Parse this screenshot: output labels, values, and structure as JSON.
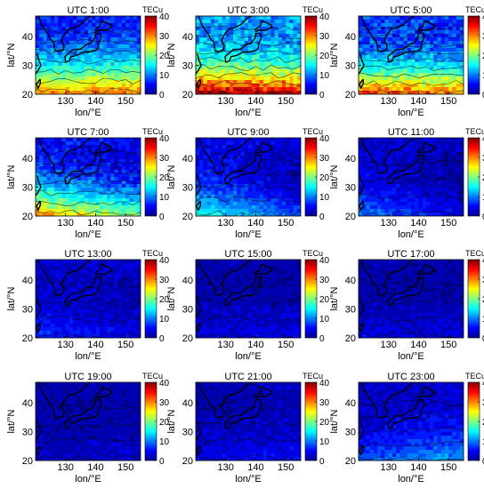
{
  "figure": {
    "xlabel": "lon/°E",
    "ylabel": "lat/°N",
    "colorbar_label": "TECu"
  },
  "chart_data": {
    "type": "heatmap",
    "x_ticks": [
      130,
      140,
      150
    ],
    "y_ticks": [
      20,
      30,
      40
    ],
    "xlim": [
      120,
      155
    ],
    "ylim": [
      20,
      47
    ],
    "colorbar": {
      "label": "TECu",
      "range": [
        0,
        40
      ],
      "ticks": [
        0,
        10,
        20,
        30,
        40
      ],
      "colormap": "jet"
    },
    "panels": [
      {
        "title": "UTC 1:00",
        "south_tec": 24,
        "north_tec": 6,
        "west_boost": 6,
        "east_boost": 8
      },
      {
        "title": "UTC 3:00",
        "south_tec": 38,
        "north_tec": 12,
        "west_boost": 2,
        "east_boost": 0
      },
      {
        "title": "UTC 5:00",
        "south_tec": 34,
        "north_tec": 8,
        "west_boost": 0,
        "east_boost": -2
      },
      {
        "title": "UTC 7:00",
        "south_tec": 26,
        "north_tec": 5,
        "west_boost": 4,
        "east_boost": -6
      },
      {
        "title": "UTC 9:00",
        "south_tec": 14,
        "north_tec": 4,
        "west_boost": 3,
        "east_boost": -6
      },
      {
        "title": "UTC 11:00",
        "south_tec": 8,
        "north_tec": 3,
        "west_boost": 2,
        "east_boost": -4
      },
      {
        "title": "UTC 13:00",
        "south_tec": 6,
        "north_tec": 3,
        "west_boost": 1,
        "east_boost": -2
      },
      {
        "title": "UTC 15:00",
        "south_tec": 4,
        "north_tec": 2,
        "west_boost": 0,
        "east_boost": 0
      },
      {
        "title": "UTC 17:00",
        "south_tec": 4,
        "north_tec": 2,
        "west_boost": 0,
        "east_boost": 0
      },
      {
        "title": "UTC 19:00",
        "south_tec": 3,
        "north_tec": 2,
        "west_boost": 0,
        "east_boost": 0
      },
      {
        "title": "UTC 21:00",
        "south_tec": 4,
        "north_tec": 2,
        "west_boost": 0,
        "east_boost": 1
      },
      {
        "title": "UTC 23:00",
        "south_tec": 9,
        "north_tec": 3,
        "west_boost": -1,
        "east_boost": 3
      }
    ]
  }
}
